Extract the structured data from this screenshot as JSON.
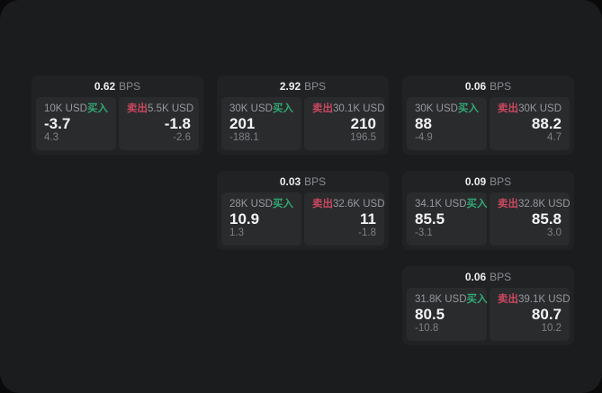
{
  "theme": {
    "outer_background": "#0a0a0b",
    "surface": "#1b1c1d",
    "card_background": "#212224",
    "panel_background": "#2a2b2d",
    "text_primary": "#f3f3f4",
    "text_muted": "#97989c",
    "text_dim": "#7f8085",
    "buy_green": "#31a873",
    "sell_red": "#c9485f"
  },
  "labels": {
    "bps_unit": "BPS",
    "buy": "买入",
    "sell": "卖出"
  },
  "cards": [
    {
      "row": 1,
      "col": 1,
      "bps": "0.62",
      "buy": {
        "notional": "10K USD",
        "price": "-3.7",
        "delta": "4.3"
      },
      "sell": {
        "notional": "5.5K USD",
        "price": "-1.8",
        "delta": "-2.6"
      }
    },
    {
      "row": 1,
      "col": 2,
      "bps": "2.92",
      "buy": {
        "notional": "30K USD",
        "price": "201",
        "delta": "-188.1"
      },
      "sell": {
        "notional": "30.1K USD",
        "price": "210",
        "delta": "196.5"
      }
    },
    {
      "row": 1,
      "col": 3,
      "bps": "0.06",
      "buy": {
        "notional": "30K USD",
        "price": "88",
        "delta": "-4.9"
      },
      "sell": {
        "notional": "30K USD",
        "price": "88.2",
        "delta": "4.7"
      }
    },
    {
      "row": 2,
      "col": 2,
      "bps": "0.03",
      "buy": {
        "notional": "28K USD",
        "price": "10.9",
        "delta": "1.3"
      },
      "sell": {
        "notional": "32.6K USD",
        "price": "11",
        "delta": "-1.8"
      }
    },
    {
      "row": 2,
      "col": 3,
      "bps": "0.09",
      "buy": {
        "notional": "34.1K USD",
        "price": "85.5",
        "delta": "-3.1"
      },
      "sell": {
        "notional": "32.8K USD",
        "price": "85.8",
        "delta": "3.0"
      }
    },
    {
      "row": 3,
      "col": 3,
      "bps": "0.06",
      "buy": {
        "notional": "31.8K USD",
        "price": "80.5",
        "delta": "-10.8"
      },
      "sell": {
        "notional": "39.1K USD",
        "price": "80.7",
        "delta": "10.2"
      }
    }
  ]
}
